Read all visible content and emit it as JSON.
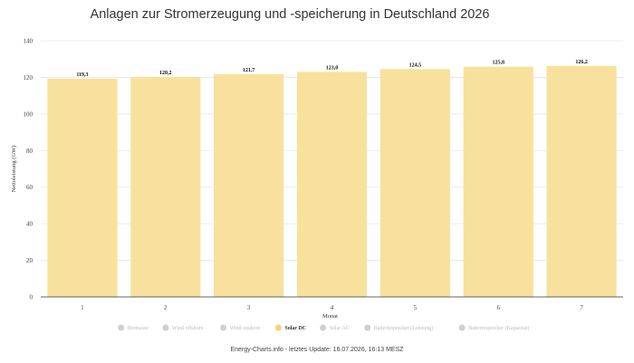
{
  "title": "Anlagen zur Stromerzeugung und -speicherung in Deutschland 2026",
  "footer": "Energy-Charts.info - letztes Update: 16.07.2026, 16:13 MESZ",
  "chart_data": {
    "type": "bar",
    "title": "Anlagen zur Stromerzeugung und -speicherung in Deutschland 2026",
    "xlabel": "Monat",
    "ylabel": "Nettoleistung (GW)",
    "categories": [
      "1",
      "2",
      "3",
      "4",
      "5",
      "6",
      "7"
    ],
    "series": [
      {
        "name": "Solar DC",
        "color": "#f8e19c",
        "values": [
          119.3,
          120.2,
          121.7,
          123.0,
          124.5,
          125.8,
          126.2
        ],
        "labels": [
          "119,3",
          "120,2",
          "121,7",
          "123,0",
          "124,5",
          "125,8",
          "126,2"
        ]
      }
    ],
    "ylim": [
      0,
      140
    ],
    "yticks": [
      0,
      20,
      40,
      60,
      80,
      100,
      120,
      140
    ],
    "grid": true,
    "legend_position": "bottom",
    "legend": [
      {
        "name": "Biomasse",
        "color": "#cfcfcf",
        "active": false
      },
      {
        "name": "Wind offshore",
        "color": "#cfcfcf",
        "active": false
      },
      {
        "name": "Wind onshore",
        "color": "#cfcfcf",
        "active": false
      },
      {
        "name": "Solar DC",
        "color": "#f8d27c",
        "active": true
      },
      {
        "name": "Solar AC",
        "color": "#cfcfcf",
        "active": false
      },
      {
        "name": "Batteriespeicher (Leistung)",
        "color": "#cfcfcf",
        "active": false
      },
      {
        "name": "Batteriespeicher (Kapazität)",
        "color": "#cfcfcf",
        "active": false
      }
    ]
  }
}
